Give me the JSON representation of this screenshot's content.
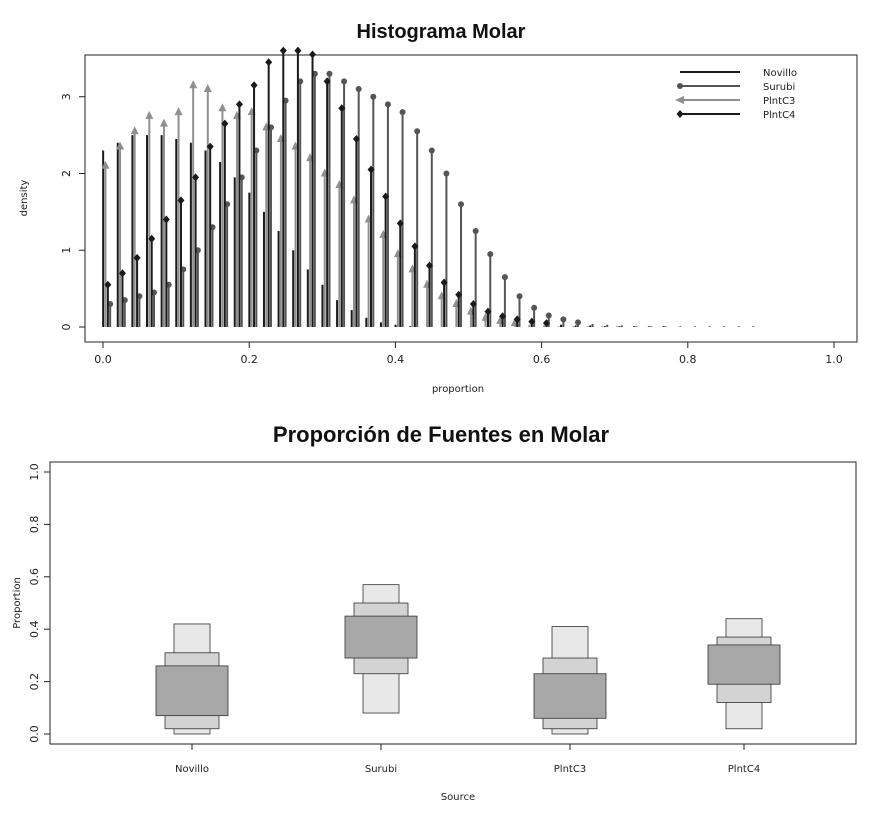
{
  "chart_data": [
    {
      "type": "histogram",
      "title": "Histograma Molar",
      "xlabel": "proportion",
      "ylabel": "density",
      "xlim": [
        0,
        1
      ],
      "ylim": [
        0,
        3.7
      ],
      "x_ticks": [
        "0.0",
        "0.2",
        "0.4",
        "0.6",
        "0.8",
        "1.0"
      ],
      "y_ticks": [
        "0",
        "1",
        "2",
        "3"
      ],
      "legend_position": "top-right",
      "legend": [
        "Novillo",
        "Surubi",
        "PlntC3",
        "PlntC4"
      ],
      "x": [
        0.005,
        0.025,
        0.045,
        0.065,
        0.085,
        0.105,
        0.125,
        0.145,
        0.165,
        0.185,
        0.205,
        0.225,
        0.245,
        0.265,
        0.285,
        0.305,
        0.325,
        0.345,
        0.365,
        0.385,
        0.405,
        0.425,
        0.445,
        0.465,
        0.485,
        0.505,
        0.525,
        0.545,
        0.565,
        0.585,
        0.605,
        0.625,
        0.645,
        0.665,
        0.685,
        0.705,
        0.725,
        0.745,
        0.765,
        0.785,
        0.805,
        0.825,
        0.845,
        0.865,
        0.885
      ],
      "series": [
        {
          "name": "Novillo",
          "marker": "none",
          "color": "#1a1a1a",
          "values": [
            2.3,
            2.4,
            2.5,
            2.5,
            2.5,
            2.45,
            2.4,
            2.3,
            2.15,
            1.95,
            1.75,
            1.5,
            1.25,
            1.0,
            0.75,
            0.55,
            0.35,
            0.22,
            0.12,
            0.06,
            0.03,
            0.01,
            0,
            0,
            0,
            0,
            0,
            0,
            0,
            0,
            0,
            0,
            0,
            0,
            0,
            0,
            0,
            0,
            0,
            0,
            0,
            0,
            0,
            0,
            0
          ]
        },
        {
          "name": "Surubi",
          "marker": "circle",
          "color": "#555555",
          "values": [
            0.3,
            0.35,
            0.4,
            0.45,
            0.55,
            0.75,
            1.0,
            1.3,
            1.6,
            1.95,
            2.3,
            2.6,
            2.95,
            3.2,
            3.3,
            3.3,
            3.2,
            3.1,
            3.0,
            2.9,
            2.8,
            2.55,
            2.3,
            2.0,
            1.6,
            1.25,
            0.95,
            0.65,
            0.4,
            0.25,
            0.15,
            0.1,
            0.06,
            0.04,
            0.03,
            0.02,
            0.01,
            0.01,
            0.01,
            0.01,
            0.01,
            0.01,
            0.01,
            0.01,
            0.01
          ]
        },
        {
          "name": "PlntC3",
          "marker": "arrow",
          "color": "#8f8f8f",
          "values": [
            2.1,
            2.35,
            2.55,
            2.75,
            2.65,
            2.8,
            3.15,
            3.1,
            2.85,
            2.75,
            2.8,
            2.6,
            2.45,
            2.35,
            2.2,
            2.0,
            1.85,
            1.65,
            1.4,
            1.2,
            0.95,
            0.75,
            0.55,
            0.4,
            0.3,
            0.2,
            0.12,
            0.08,
            0.05,
            0.03,
            0.02,
            0.01,
            0.01,
            0.01,
            0.01,
            0.01,
            0,
            0,
            0,
            0,
            0,
            0,
            0,
            0,
            0
          ]
        },
        {
          "name": "PlntC4",
          "marker": "diamond",
          "color": "#1a1a1a",
          "values": [
            0.55,
            0.7,
            0.9,
            1.15,
            1.4,
            1.65,
            1.95,
            2.35,
            2.65,
            2.9,
            3.15,
            3.45,
            3.6,
            3.6,
            3.55,
            3.2,
            2.85,
            2.45,
            2.05,
            1.7,
            1.35,
            1.05,
            0.8,
            0.58,
            0.42,
            0.3,
            0.2,
            0.14,
            0.1,
            0.07,
            0.05,
            0.03,
            0.02,
            0.02,
            0.01,
            0.01,
            0.01,
            0.01,
            0.01,
            0,
            0,
            0,
            0,
            0,
            0
          ]
        }
      ]
    },
    {
      "type": "boxplot",
      "title": "Proporción de Fuentes en Molar",
      "xlabel": "Source",
      "ylabel": "Proportion",
      "ylim": [
        0,
        1
      ],
      "y_ticks": [
        "0.0",
        "0.2",
        "0.4",
        "0.6",
        "0.8",
        "1.0"
      ],
      "categories": [
        "Novillo",
        "Surubi",
        "PlntC3",
        "PlntC4"
      ],
      "intervals": [
        {
          "category": "Novillo",
          "outer": [
            0.0,
            0.42
          ],
          "middle": [
            0.02,
            0.31
          ],
          "inner": [
            0.07,
            0.26
          ]
        },
        {
          "category": "Surubi",
          "outer": [
            0.08,
            0.57
          ],
          "middle": [
            0.23,
            0.5
          ],
          "inner": [
            0.29,
            0.45
          ]
        },
        {
          "category": "PlntC3",
          "outer": [
            0.0,
            0.41
          ],
          "middle": [
            0.02,
            0.29
          ],
          "inner": [
            0.06,
            0.23
          ]
        },
        {
          "category": "PlntC4",
          "outer": [
            0.02,
            0.44
          ],
          "middle": [
            0.12,
            0.37
          ],
          "inner": [
            0.19,
            0.34
          ]
        }
      ],
      "colors": {
        "outer": "#e8e8e8",
        "middle": "#d3d3d3",
        "inner": "#a8a8a8"
      }
    }
  ]
}
